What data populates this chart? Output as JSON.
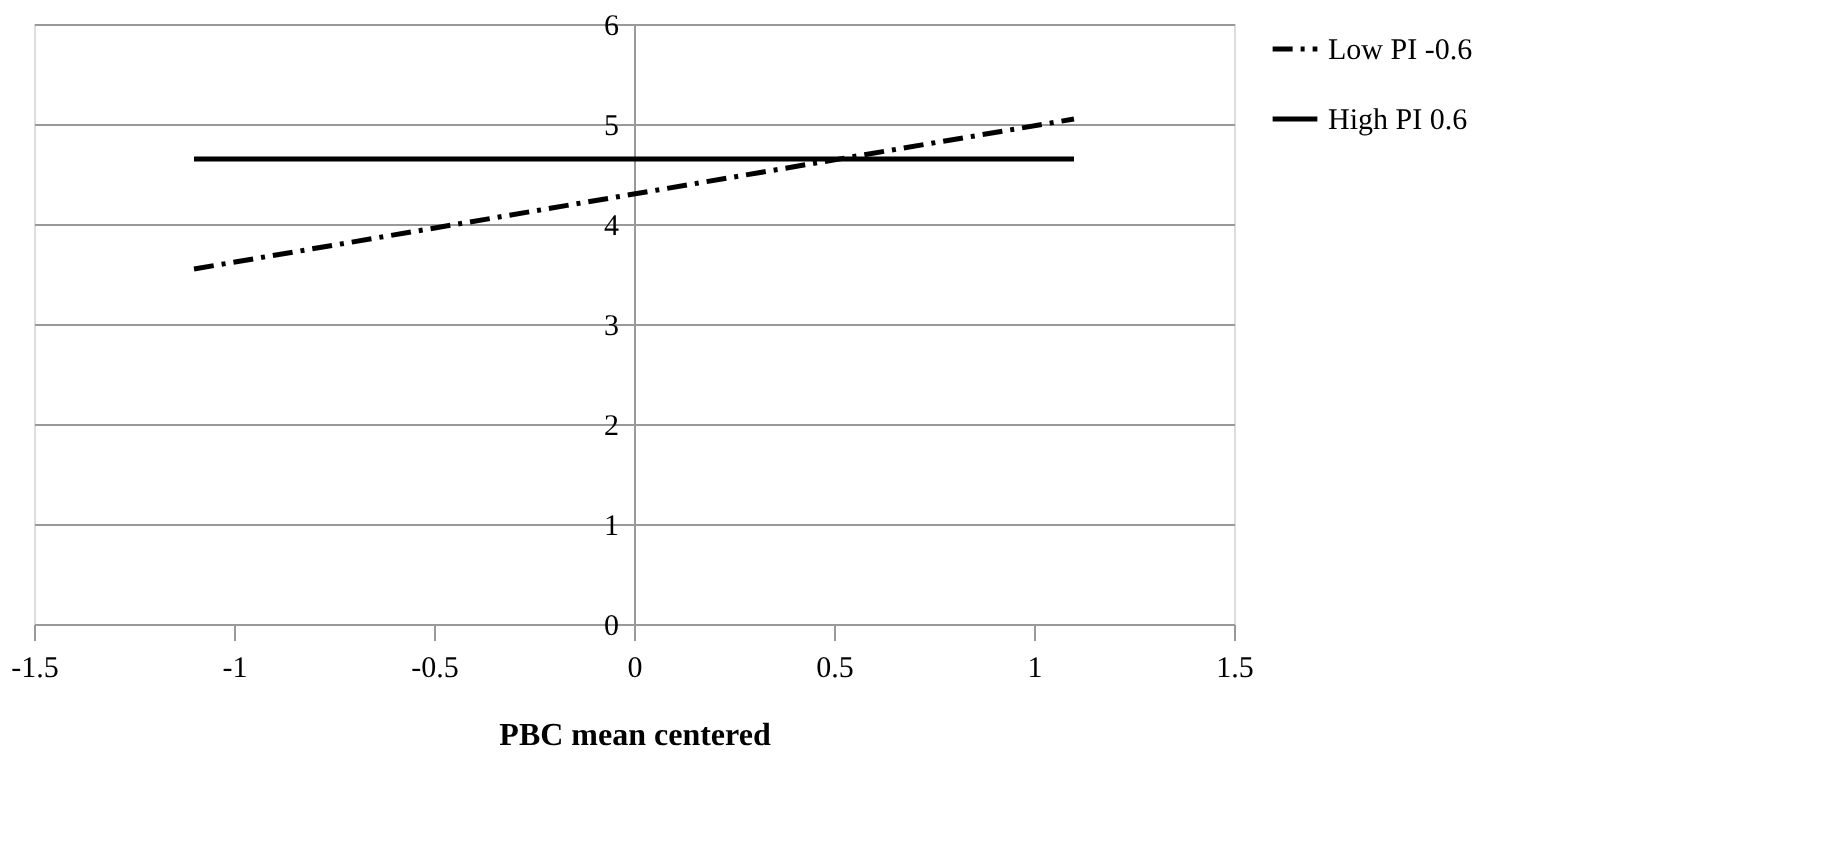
{
  "chart_data": {
    "type": "line",
    "xlabel": "PBC mean centered",
    "xlim": [
      -1.5,
      1.5
    ],
    "xticks": [
      -1.5,
      -1,
      -0.5,
      0,
      0.5,
      1,
      1.5
    ],
    "ylim": [
      0,
      6
    ],
    "yticks": [
      0,
      1,
      2,
      3,
      4,
      5,
      6
    ],
    "grid": "y",
    "legend": "right",
    "marker": "none",
    "x": [
      -1.1,
      1.1
    ],
    "series": [
      {
        "name": "Low PI -0.6",
        "color": "#000000",
        "line_style": "dashdot",
        "values": [
          3.55,
          5.05
        ]
      },
      {
        "name": "High PI 0.6",
        "color": "#000000",
        "line_style": "solid",
        "values": [
          4.65,
          4.65
        ]
      }
    ]
  }
}
